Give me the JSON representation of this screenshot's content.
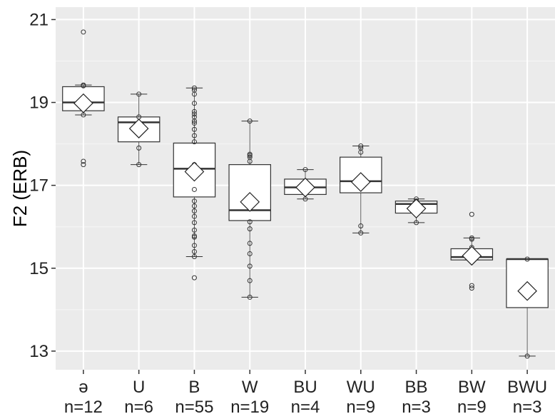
{
  "chart_data": {
    "type": "boxplot",
    "ylabel": "F2 (ERB)",
    "xlabel": "",
    "ylim": [
      12.55,
      21.3
    ],
    "yticks": [
      13,
      15,
      17,
      19,
      21
    ],
    "grid": true,
    "background": "#ebebeb",
    "categories": [
      {
        "label": "ə",
        "n_label": "n=12",
        "q1": 18.8,
        "median": 19.0,
        "q3": 19.38,
        "whisker_low": 18.7,
        "whisker_high": 19.42,
        "mean": 18.98,
        "points": [
          20.7,
          19.42,
          19.4,
          18.7,
          17.58,
          17.5
        ]
      },
      {
        "label": "U",
        "n_label": "n=6",
        "q1": 18.05,
        "median": 18.52,
        "q3": 18.65,
        "whisker_low": 17.5,
        "whisker_high": 19.2,
        "mean": 18.37,
        "points": [
          19.2,
          18.65,
          17.9,
          17.5
        ]
      },
      {
        "label": "B",
        "n_label": "n=55",
        "q1": 16.72,
        "median": 17.4,
        "q3": 18.02,
        "whisker_low": 15.28,
        "whisker_high": 19.35,
        "mean": 17.33,
        "points": [
          19.35,
          19.3,
          19.2,
          18.98,
          18.78,
          18.72,
          18.65,
          18.55,
          18.5,
          18.35,
          18.2,
          18.05,
          17.5,
          17.2,
          16.9,
          16.62,
          16.5,
          16.38,
          16.25,
          16.1,
          15.92,
          15.78,
          15.75,
          15.55,
          15.4,
          15.28,
          14.77
        ]
      },
      {
        "label": "W",
        "n_label": "n=19",
        "q1": 16.15,
        "median": 16.4,
        "q3": 17.5,
        "whisker_low": 14.3,
        "whisker_high": 18.55,
        "mean": 16.6,
        "points": [
          18.55,
          17.75,
          17.72,
          17.68,
          17.58,
          16.12,
          15.95,
          15.6,
          15.35,
          15.05,
          14.7,
          14.3
        ]
      },
      {
        "label": "BU",
        "n_label": "n=4",
        "q1": 16.78,
        "median": 16.95,
        "q3": 17.15,
        "whisker_low": 16.67,
        "whisker_high": 17.38,
        "mean": 16.95,
        "points": [
          17.38,
          17.1,
          16.8,
          16.67
        ]
      },
      {
        "label": "WU",
        "n_label": "n=9",
        "q1": 16.82,
        "median": 17.1,
        "q3": 17.68,
        "whisker_low": 15.85,
        "whisker_high": 17.95,
        "mean": 17.08,
        "points": [
          17.95,
          17.9,
          17.8,
          17.0,
          16.02,
          15.85
        ]
      },
      {
        "label": "BB",
        "n_label": "n=3",
        "q1": 16.33,
        "median": 16.55,
        "q3": 16.62,
        "whisker_low": 16.1,
        "whisker_high": 16.67,
        "mean": 16.44,
        "points": [
          16.67,
          16.62,
          16.1
        ]
      },
      {
        "label": "BW",
        "n_label": "n=9",
        "q1": 15.2,
        "median": 15.27,
        "q3": 15.47,
        "whisker_low": 15.2,
        "whisker_high": 15.73,
        "mean": 15.3,
        "points": [
          16.3,
          15.73,
          15.7,
          15.5,
          15.3,
          14.58,
          14.52
        ]
      },
      {
        "label": "BWU",
        "n_label": "n=3",
        "q1": 14.05,
        "median": 15.22,
        "q3": 15.22,
        "whisker_low": 12.88,
        "whisker_high": 15.22,
        "mean": 14.45,
        "points": [
          15.22,
          12.88
        ]
      }
    ]
  }
}
